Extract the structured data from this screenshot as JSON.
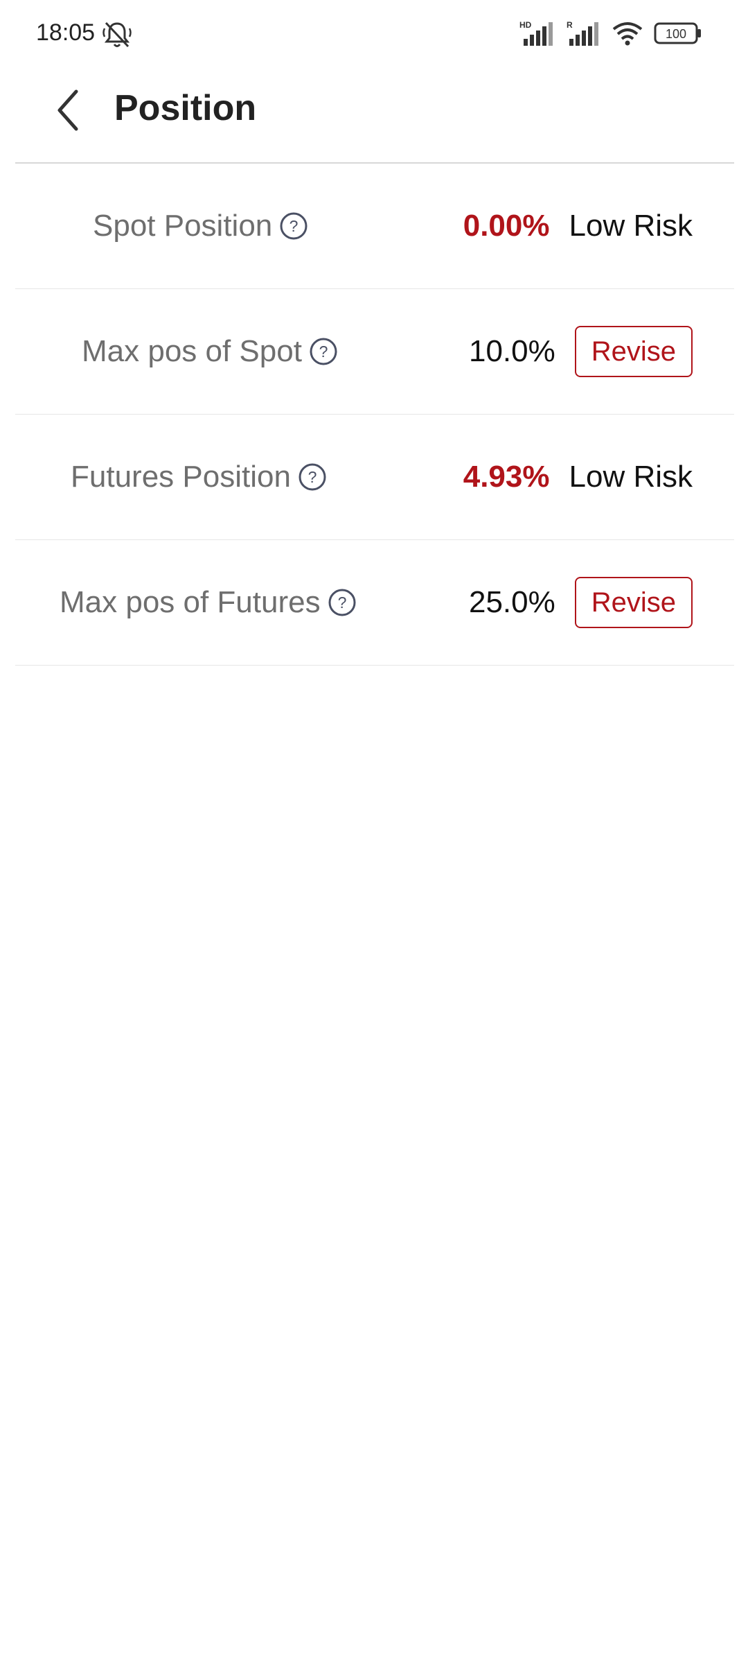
{
  "status": {
    "time": "18:05",
    "net1": "HD",
    "net2": "R",
    "battery": "100"
  },
  "header": {
    "title": "Position"
  },
  "rows": [
    {
      "label": "Spot Position",
      "value": "0.00%",
      "value_color": "#b0141a",
      "status": "Low Risk"
    },
    {
      "label": "Max pos of Spot",
      "value": "10.0%",
      "action": "Revise"
    },
    {
      "label": "Futures Position",
      "value": "4.93%",
      "value_color": "#b0141a",
      "status": "Low Risk"
    },
    {
      "label": "Max pos of Futures",
      "value": "25.0%",
      "action": "Revise"
    }
  ],
  "colors": {
    "accent": "#b0141a",
    "label": "#6e6e6e",
    "divider": "#e6e6e6"
  }
}
